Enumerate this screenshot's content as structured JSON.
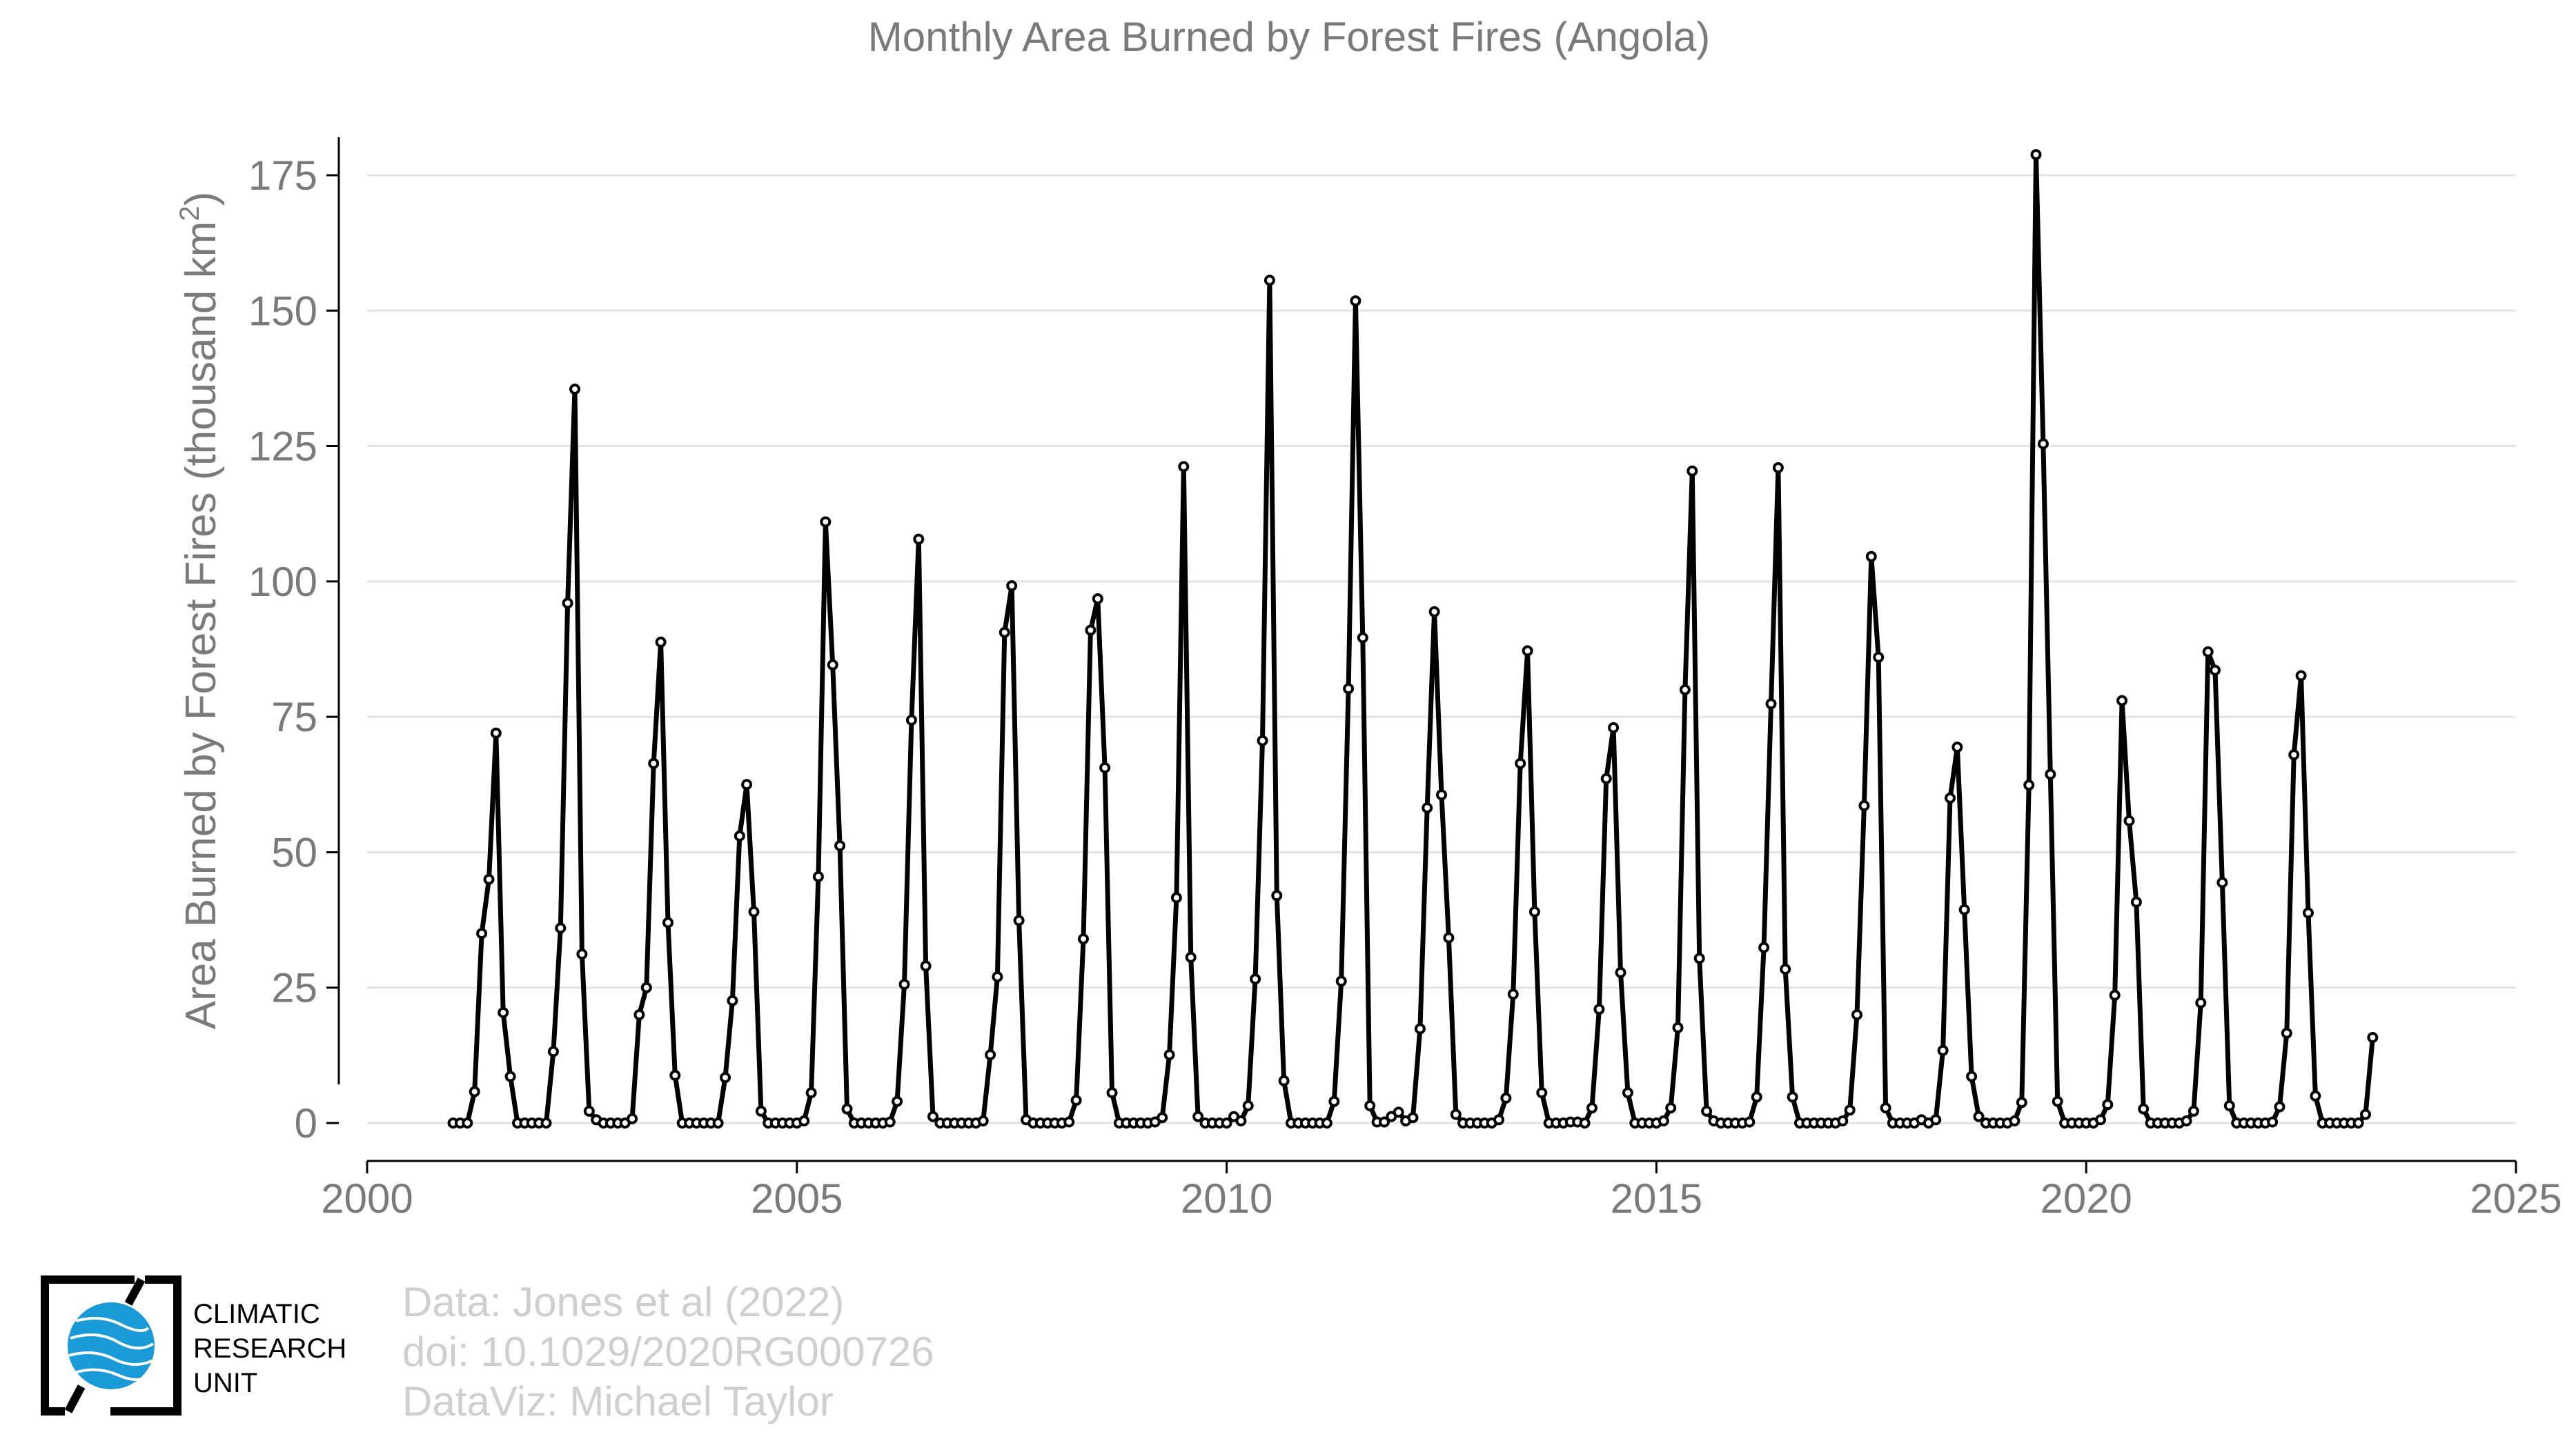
{
  "chart_data": {
    "type": "line",
    "title": "Monthly Area Burned by Forest Fires (Angola)",
    "ylabel": "Area Burned by Forest Fires (thousand km",
    "ylabel_superscript": "2",
    "ylabel_suffix": ")",
    "xlabel": "",
    "xlim": [
      2000,
      2025
    ],
    "ylim": [
      -7,
      182
    ],
    "xticks": [
      2000,
      2005,
      2010,
      2015,
      2020,
      2025
    ],
    "yticks": [
      0,
      25,
      50,
      75,
      100,
      125,
      150,
      175
    ],
    "grid": "horizontal",
    "legend": "none",
    "series_color": "#000000",
    "start": "2001-01",
    "end": "2023-05",
    "series": [
      {
        "values": [
          0,
          0,
          0,
          5.8,
          35,
          45,
          72,
          20.4,
          8.6,
          0,
          0,
          0,
          0,
          0,
          13.2,
          36,
          96,
          135.5,
          31.2,
          2.2,
          0.6,
          0,
          0,
          0,
          0,
          0.8,
          20,
          25,
          66.4,
          88.8,
          37,
          8.8,
          0,
          0,
          0,
          0,
          0,
          0,
          8.4,
          22.6,
          53,
          62.5,
          39,
          2.2,
          0,
          0,
          0,
          0,
          0,
          0.4,
          5.6,
          45.5,
          111,
          84.6,
          51.2,
          2.6,
          0,
          0,
          0,
          0,
          0,
          0.2,
          4,
          25.6,
          74.4,
          107.8,
          29,
          1.2,
          0,
          0,
          0,
          0,
          0,
          0,
          0.4,
          12.6,
          27,
          90.6,
          99.2,
          37.4,
          0.6,
          0,
          0,
          0,
          0,
          0,
          0.2,
          4.2,
          34,
          91,
          96.8,
          65.6,
          5.6,
          0,
          0,
          0,
          0,
          0,
          0.2,
          1,
          12.6,
          41.6,
          121.2,
          30.6,
          1.2,
          0,
          0,
          0,
          0,
          1.2,
          0.4,
          3.2,
          26.6,
          70.6,
          155.6,
          42,
          7.8,
          0,
          0,
          0,
          0,
          0,
          0,
          4,
          26.2,
          80.2,
          151.8,
          89.6,
          3.2,
          0.2,
          0.2,
          1.2,
          2,
          0.4,
          1,
          17.4,
          58.2,
          94.4,
          60.6,
          34.2,
          1.6,
          0,
          0,
          0,
          0,
          0,
          0.6,
          4.6,
          23.8,
          66.4,
          87.2,
          39,
          5.6,
          0,
          0,
          0,
          0.2,
          0.2,
          0,
          2.8,
          21,
          63.6,
          73,
          27.8,
          5.6,
          0,
          0,
          0,
          0,
          0.4,
          2.8,
          17.6,
          80,
          120.4,
          30.4,
          2.2,
          0.4,
          0,
          0,
          0,
          0,
          0.2,
          4.8,
          32.4,
          77.4,
          121,
          28.4,
          4.8,
          0,
          0,
          0,
          0,
          0,
          0,
          0.4,
          2.4,
          20,
          58.6,
          104.6,
          86,
          2.8,
          0,
          0,
          0,
          0,
          0.6,
          0,
          0.6,
          13.4,
          60,
          69.4,
          39.4,
          8.6,
          1.2,
          0,
          0,
          0,
          0,
          0.4,
          3.8,
          62.4,
          178.8,
          125.4,
          64.4,
          4,
          0,
          0,
          0,
          0,
          0,
          0.6,
          3.4,
          23.6,
          78,
          55.8,
          40.8,
          2.6,
          0,
          0,
          0,
          0,
          0,
          0.4,
          2.2,
          22.2,
          87,
          83.6,
          44.4,
          3.2,
          0,
          0,
          0,
          0,
          0,
          0.2,
          3,
          16.6,
          68,
          82.6,
          38.8,
          5,
          0,
          0,
          0,
          0,
          0,
          0,
          1.6,
          15.8
        ]
      }
    ]
  },
  "credits": {
    "line1": "Data: Jones et al (2022)",
    "line2": "doi: 10.1029/2020RG000726",
    "line3": "DataViz: Michael Taylor"
  },
  "logo": {
    "line1": "CLIMATIC",
    "line2": "RESEARCH",
    "line3": "UNIT",
    "globe_color": "#1a9ad6"
  }
}
